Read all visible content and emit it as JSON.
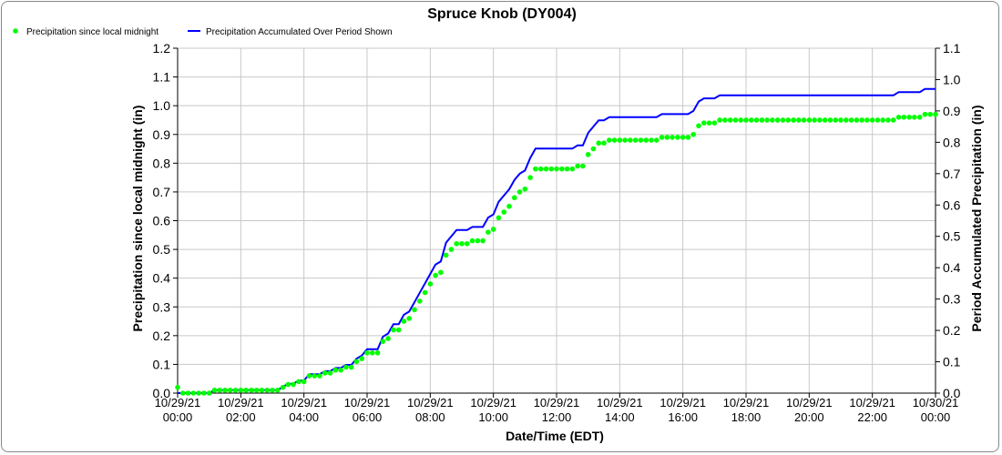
{
  "chart_data": {
    "type": "line",
    "title": "Spruce Knob (DY004)",
    "xlabel": "Date/Time (EDT)",
    "ylabel": "Precipitation since local midnight (in)",
    "ylabel_right": "Period Accumulated Precipitation (in)",
    "ylim": [
      0,
      1.2
    ],
    "ylim_right": [
      0,
      1.1
    ],
    "yticks": [
      "0.0",
      "0.1",
      "0.2",
      "0.3",
      "0.4",
      "0.5",
      "0.6",
      "0.7",
      "0.8",
      "0.9",
      "1.0",
      "1.1",
      "1.2"
    ],
    "yticks_right": [
      "0.0",
      "0.1",
      "0.2",
      "0.3",
      "0.4",
      "0.5",
      "0.6",
      "0.7",
      "0.8",
      "0.9",
      "1.0",
      "1.1"
    ],
    "xlim_hours": [
      0,
      24
    ],
    "interval_minutes": 10,
    "xticks": [
      {
        "hour": 0,
        "date": "10/29/21",
        "time": "00:00"
      },
      {
        "hour": 2,
        "date": "10/29/21",
        "time": "02:00"
      },
      {
        "hour": 4,
        "date": "10/29/21",
        "time": "04:00"
      },
      {
        "hour": 6,
        "date": "10/29/21",
        "time": "06:00"
      },
      {
        "hour": 8,
        "date": "10/29/21",
        "time": "08:00"
      },
      {
        "hour": 10,
        "date": "10/29/21",
        "time": "10:00"
      },
      {
        "hour": 12,
        "date": "10/29/21",
        "time": "12:00"
      },
      {
        "hour": 14,
        "date": "10/29/21",
        "time": "14:00"
      },
      {
        "hour": 16,
        "date": "10/29/21",
        "time": "16:00"
      },
      {
        "hour": 18,
        "date": "10/29/21",
        "time": "18:00"
      },
      {
        "hour": 20,
        "date": "10/29/21",
        "time": "20:00"
      },
      {
        "hour": 22,
        "date": "10/29/21",
        "time": "22:00"
      },
      {
        "hour": 24,
        "date": "10/30/21",
        "time": "00:00"
      }
    ],
    "grid": true,
    "legend_position": "top-left",
    "series": [
      {
        "name": "Precipitation since local midnight",
        "axis": "left",
        "style": "dots",
        "color": "#00ff00",
        "values": [
          0.02,
          0,
          0,
          0,
          0,
          0,
          0,
          0.01,
          0.01,
          0.01,
          0.01,
          0.01,
          0.01,
          0.01,
          0.01,
          0.01,
          0.01,
          0.01,
          0.01,
          0.01,
          0.02,
          0.03,
          0.03,
          0.04,
          0.04,
          0.06,
          0.06,
          0.06,
          0.07,
          0.07,
          0.08,
          0.08,
          0.09,
          0.09,
          0.11,
          0.12,
          0.14,
          0.14,
          0.14,
          0.18,
          0.19,
          0.22,
          0.22,
          0.25,
          0.26,
          0.29,
          0.32,
          0.35,
          0.38,
          0.41,
          0.42,
          0.48,
          0.5,
          0.52,
          0.52,
          0.52,
          0.53,
          0.53,
          0.53,
          0.56,
          0.57,
          0.61,
          0.63,
          0.65,
          0.68,
          0.7,
          0.71,
          0.75,
          0.78,
          0.78,
          0.78,
          0.78,
          0.78,
          0.78,
          0.78,
          0.78,
          0.79,
          0.79,
          0.83,
          0.85,
          0.87,
          0.87,
          0.88,
          0.88,
          0.88,
          0.88,
          0.88,
          0.88,
          0.88,
          0.88,
          0.88,
          0.88,
          0.89,
          0.89,
          0.89,
          0.89,
          0.89,
          0.89,
          0.9,
          0.93,
          0.94,
          0.94,
          0.94,
          0.95,
          0.95,
          0.95,
          0.95,
          0.95,
          0.95,
          0.95,
          0.95,
          0.95,
          0.95,
          0.95,
          0.95,
          0.95,
          0.95,
          0.95,
          0.95,
          0.95,
          0.95,
          0.95,
          0.95,
          0.95,
          0.95,
          0.95,
          0.95,
          0.95,
          0.95,
          0.95,
          0.95,
          0.95,
          0.95,
          0.95,
          0.95,
          0.95,
          0.95,
          0.96,
          0.96,
          0.96,
          0.96,
          0.96,
          0.97,
          0.97,
          0.97
        ]
      },
      {
        "name": "Precipitation Accumulated Over Period Shown",
        "axis": "right",
        "style": "line",
        "color": "#0000ff",
        "values": [
          0,
          0,
          0,
          0,
          0,
          0,
          0,
          0.01,
          0.01,
          0.01,
          0.01,
          0.01,
          0.01,
          0.01,
          0.01,
          0.01,
          0.01,
          0.01,
          0.01,
          0.01,
          0.02,
          0.03,
          0.03,
          0.04,
          0.04,
          0.06,
          0.06,
          0.06,
          0.07,
          0.07,
          0.08,
          0.08,
          0.09,
          0.09,
          0.11,
          0.12,
          0.14,
          0.14,
          0.14,
          0.18,
          0.19,
          0.22,
          0.22,
          0.25,
          0.26,
          0.29,
          0.32,
          0.35,
          0.38,
          0.41,
          0.42,
          0.48,
          0.5,
          0.52,
          0.52,
          0.52,
          0.53,
          0.53,
          0.53,
          0.56,
          0.57,
          0.61,
          0.63,
          0.65,
          0.68,
          0.7,
          0.71,
          0.75,
          0.78,
          0.78,
          0.78,
          0.78,
          0.78,
          0.78,
          0.78,
          0.78,
          0.79,
          0.79,
          0.83,
          0.85,
          0.87,
          0.87,
          0.88,
          0.88,
          0.88,
          0.88,
          0.88,
          0.88,
          0.88,
          0.88,
          0.88,
          0.88,
          0.89,
          0.89,
          0.89,
          0.89,
          0.89,
          0.89,
          0.9,
          0.93,
          0.94,
          0.94,
          0.94,
          0.95,
          0.95,
          0.95,
          0.95,
          0.95,
          0.95,
          0.95,
          0.95,
          0.95,
          0.95,
          0.95,
          0.95,
          0.95,
          0.95,
          0.95,
          0.95,
          0.95,
          0.95,
          0.95,
          0.95,
          0.95,
          0.95,
          0.95,
          0.95,
          0.95,
          0.95,
          0.95,
          0.95,
          0.95,
          0.95,
          0.95,
          0.95,
          0.95,
          0.95,
          0.96,
          0.96,
          0.96,
          0.96,
          0.96,
          0.97,
          0.97,
          0.97
        ]
      }
    ]
  }
}
